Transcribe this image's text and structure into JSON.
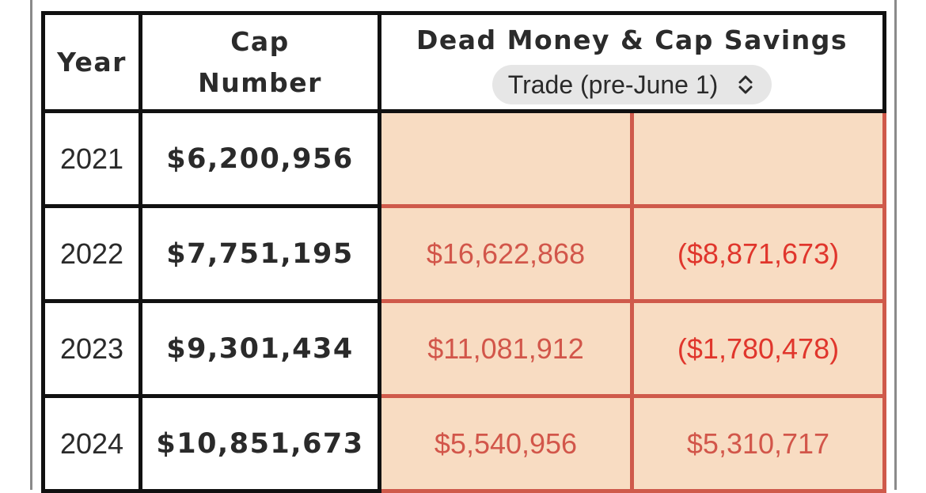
{
  "table": {
    "headers": {
      "year": "Year",
      "cap_number_line1": "Cap",
      "cap_number_line2": "Number",
      "dead_money": "Dead Money & Cap Savings"
    },
    "scenario_select": {
      "selected": "Trade (pre-June 1)",
      "icon": "chevron-up-down-icon"
    },
    "rows": [
      {
        "year": "2021",
        "cap_number": "$6,200,956",
        "dead_money": "",
        "cap_savings": ""
      },
      {
        "year": "2022",
        "cap_number": "$7,751,195",
        "dead_money": "$16,622,868",
        "cap_savings": "($8,871,673)"
      },
      {
        "year": "2023",
        "cap_number": "$9,301,434",
        "dead_money": "$11,081,912",
        "cap_savings": "($1,780,478)"
      },
      {
        "year": "2024",
        "cap_number": "$10,851,673",
        "dead_money": "$5,540,956",
        "cap_savings": "$5,310,717"
      }
    ]
  },
  "colors": {
    "dead_cell_bg": "#f8dcc2",
    "dead_cell_border": "#cf5a4b",
    "dead_text": "#d2564a",
    "negative_text": "#e0362c"
  }
}
